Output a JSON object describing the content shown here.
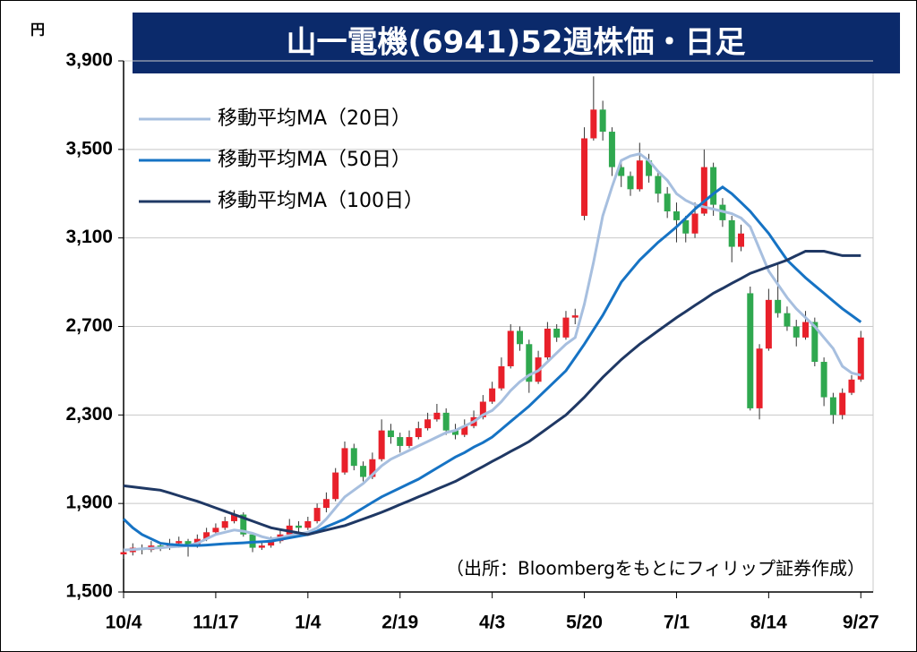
{
  "chart_data": {
    "type": "candlestick",
    "title": "山一電機(6941)52週株価・日足",
    "unit": "円",
    "annotation": "（出所：Bloombergをもとにフィリップ証券作成）",
    "up_color": "#e8202a",
    "down_color": "#2fa84f",
    "legend": "upper left",
    "grid": true,
    "xlim": [
      0,
      244
    ],
    "ylim": [
      1500,
      3900
    ],
    "xticks": [
      {
        "value": 0,
        "label": "10/4"
      },
      {
        "value": 30,
        "label": "11/17"
      },
      {
        "value": 60,
        "label": "1/4"
      },
      {
        "value": 90,
        "label": "2/19"
      },
      {
        "value": 120,
        "label": "4/3"
      },
      {
        "value": 150,
        "label": "5/20"
      },
      {
        "value": 180,
        "label": "7/1"
      },
      {
        "value": 210,
        "label": "8/14"
      },
      {
        "value": 240,
        "label": "9/27"
      }
    ],
    "yticks": [
      {
        "value": 1500,
        "label": "1,500"
      },
      {
        "value": 1900,
        "label": "1,900"
      },
      {
        "value": 2300,
        "label": "2,300"
      },
      {
        "value": 2700,
        "label": "2,700"
      },
      {
        "value": 3100,
        "label": "3,100"
      },
      {
        "value": 3500,
        "label": "3,500"
      },
      {
        "value": 3900,
        "label": "3,900"
      }
    ],
    "x": [
      0,
      3,
      6,
      9,
      12,
      15,
      18,
      21,
      24,
      27,
      30,
      33,
      36,
      39,
      42,
      45,
      48,
      51,
      54,
      57,
      60,
      63,
      66,
      69,
      72,
      75,
      78,
      81,
      84,
      87,
      90,
      93,
      96,
      99,
      102,
      105,
      108,
      111,
      114,
      117,
      120,
      123,
      126,
      129,
      132,
      135,
      138,
      141,
      144,
      147,
      150,
      153,
      156,
      159,
      162,
      165,
      168,
      171,
      174,
      177,
      180,
      183,
      186,
      189,
      192,
      195,
      198,
      201,
      204,
      207,
      210,
      213,
      216,
      219,
      222,
      225,
      228,
      231,
      234,
      237,
      240
    ],
    "ohlc": [
      [
        1670,
        1700,
        1650,
        1680
      ],
      [
        1680,
        1720,
        1665,
        1700
      ],
      [
        1700,
        1715,
        1670,
        1690
      ],
      [
        1690,
        1730,
        1680,
        1710
      ],
      [
        1710,
        1725,
        1685,
        1700
      ],
      [
        1700,
        1740,
        1690,
        1720
      ],
      [
        1720,
        1750,
        1700,
        1730
      ],
      [
        1730,
        1740,
        1660,
        1710
      ],
      [
        1710,
        1760,
        1700,
        1740
      ],
      [
        1740,
        1790,
        1730,
        1770
      ],
      [
        1770,
        1810,
        1760,
        1790
      ],
      [
        1790,
        1840,
        1780,
        1820
      ],
      [
        1820,
        1870,
        1810,
        1850
      ],
      [
        1850,
        1860,
        1750,
        1760
      ],
      [
        1760,
        1770,
        1680,
        1700
      ],
      [
        1700,
        1730,
        1690,
        1710
      ],
      [
        1710,
        1750,
        1700,
        1730
      ],
      [
        1730,
        1780,
        1720,
        1760
      ],
      [
        1760,
        1830,
        1750,
        1800
      ],
      [
        1800,
        1820,
        1770,
        1790
      ],
      [
        1790,
        1840,
        1780,
        1820
      ],
      [
        1820,
        1900,
        1810,
        1880
      ],
      [
        1880,
        1950,
        1860,
        1920
      ],
      [
        1920,
        2060,
        1910,
        2040
      ],
      [
        2040,
        2180,
        2030,
        2150
      ],
      [
        2150,
        2170,
        2050,
        2070
      ],
      [
        2070,
        2090,
        2000,
        2020
      ],
      [
        2020,
        2130,
        2010,
        2100
      ],
      [
        2100,
        2280,
        2090,
        2230
      ],
      [
        2230,
        2260,
        2170,
        2200
      ],
      [
        2200,
        2220,
        2130,
        2160
      ],
      [
        2160,
        2230,
        2150,
        2200
      ],
      [
        2200,
        2270,
        2190,
        2240
      ],
      [
        2240,
        2310,
        2230,
        2280
      ],
      [
        2280,
        2350,
        2270,
        2310
      ],
      [
        2310,
        2330,
        2210,
        2230
      ],
      [
        2230,
        2260,
        2190,
        2210
      ],
      [
        2210,
        2280,
        2200,
        2250
      ],
      [
        2250,
        2320,
        2240,
        2290
      ],
      [
        2290,
        2390,
        2280,
        2360
      ],
      [
        2360,
        2450,
        2350,
        2420
      ],
      [
        2420,
        2560,
        2410,
        2520
      ],
      [
        2520,
        2710,
        2510,
        2680
      ],
      [
        2680,
        2700,
        2590,
        2620
      ],
      [
        2620,
        2640,
        2400,
        2450
      ],
      [
        2450,
        2590,
        2440,
        2560
      ],
      [
        2560,
        2720,
        2550,
        2690
      ],
      [
        2690,
        2710,
        2630,
        2650
      ],
      [
        2650,
        2770,
        2640,
        2740
      ],
      [
        2740,
        2780,
        2710,
        2750
      ],
      [
        3200,
        3600,
        3180,
        3550
      ],
      [
        3550,
        3830,
        3540,
        3680
      ],
      [
        3680,
        3720,
        3540,
        3580
      ],
      [
        3580,
        3600,
        3380,
        3420
      ],
      [
        3420,
        3450,
        3330,
        3380
      ],
      [
        3380,
        3400,
        3290,
        3320
      ],
      [
        3320,
        3530,
        3310,
        3450
      ],
      [
        3450,
        3480,
        3350,
        3380
      ],
      [
        3380,
        3400,
        3260,
        3300
      ],
      [
        3300,
        3330,
        3190,
        3220
      ],
      [
        3220,
        3260,
        3080,
        3180
      ],
      [
        3180,
        3200,
        3080,
        3120
      ],
      [
        3120,
        3260,
        3100,
        3210
      ],
      [
        3210,
        3500,
        3200,
        3420
      ],
      [
        3420,
        3440,
        3200,
        3250
      ],
      [
        3250,
        3280,
        3150,
        3180
      ],
      [
        3180,
        3200,
        2990,
        3060
      ],
      [
        3060,
        3160,
        3040,
        3120
      ],
      [
        2850,
        2880,
        2320,
        2330
      ],
      [
        2330,
        2620,
        2280,
        2600
      ],
      [
        2600,
        2870,
        2590,
        2820
      ],
      [
        2820,
        2980,
        2740,
        2760
      ],
      [
        2760,
        2790,
        2680,
        2700
      ],
      [
        2700,
        2730,
        2610,
        2650
      ],
      [
        2650,
        2770,
        2640,
        2720
      ],
      [
        2720,
        2740,
        2520,
        2540
      ],
      [
        2540,
        2560,
        2340,
        2380
      ],
      [
        2380,
        2400,
        2260,
        2300
      ],
      [
        2300,
        2420,
        2280,
        2400
      ],
      [
        2400,
        2480,
        2390,
        2460
      ],
      [
        2460,
        2680,
        2450,
        2650
      ]
    ],
    "series": [
      {
        "name": "移動平均MA（20日）",
        "color": "#a7bfdf",
        "values": [
          1690,
          1692,
          1695,
          1698,
          1700,
          1703,
          1706,
          1710,
          1720,
          1740,
          1760,
          1770,
          1780,
          1775,
          1765,
          1750,
          1740,
          1745,
          1755,
          1762,
          1770,
          1790,
          1830,
          1880,
          1930,
          1960,
          1990,
          2030,
          2070,
          2100,
          2120,
          2140,
          2160,
          2180,
          2200,
          2220,
          2230,
          2250,
          2270,
          2300,
          2320,
          2360,
          2410,
          2450,
          2480,
          2500,
          2540,
          2580,
          2620,
          2650,
          2800,
          2990,
          3200,
          3330,
          3450,
          3470,
          3480,
          3450,
          3400,
          3360,
          3300,
          3270,
          3250,
          3240,
          3230,
          3220,
          3210,
          3190,
          3150,
          3050,
          2950,
          2890,
          2830,
          2780,
          2740,
          2700,
          2650,
          2600,
          2520,
          2490,
          2480
        ]
      },
      {
        "name": "移動平均MA（50日）",
        "color": "#1673c4",
        "values": [
          1830,
          1790,
          1760,
          1740,
          1720,
          1715,
          1712,
          1710,
          1710,
          1712,
          1715,
          1718,
          1720,
          1722,
          1725,
          1727,
          1730,
          1737,
          1745,
          1752,
          1760,
          1775,
          1795,
          1812,
          1830,
          1855,
          1880,
          1905,
          1930,
          1950,
          1970,
          1990,
          2010,
          2035,
          2060,
          2085,
          2110,
          2130,
          2155,
          2175,
          2200,
          2235,
          2270,
          2305,
          2340,
          2380,
          2420,
          2460,
          2500,
          2560,
          2620,
          2685,
          2750,
          2825,
          2900,
          2950,
          3000,
          3040,
          3080,
          3115,
          3150,
          3190,
          3230,
          3265,
          3300,
          3330,
          3300,
          3260,
          3220,
          3170,
          3120,
          3060,
          3000,
          2960,
          2920,
          2885,
          2850,
          2815,
          2780,
          2750,
          2720
        ]
      },
      {
        "name": "移動平均MA（100日）",
        "color": "#1f3864",
        "values": [
          1980,
          1975,
          1970,
          1965,
          1960,
          1948,
          1935,
          1922,
          1910,
          1895,
          1880,
          1865,
          1850,
          1835,
          1820,
          1805,
          1790,
          1782,
          1775,
          1767,
          1760,
          1770,
          1780,
          1790,
          1800,
          1815,
          1830,
          1845,
          1860,
          1877,
          1895,
          1912,
          1930,
          1947,
          1965,
          1982,
          2000,
          2022,
          2045,
          2067,
          2090,
          2112,
          2135,
          2157,
          2180,
          2210,
          2240,
          2270,
          2300,
          2340,
          2380,
          2425,
          2470,
          2510,
          2550,
          2585,
          2620,
          2650,
          2680,
          2710,
          2740,
          2767,
          2795,
          2822,
          2850,
          2872,
          2895,
          2917,
          2940,
          2955,
          2970,
          2985,
          3000,
          3020,
          3040,
          3040,
          3040,
          3030,
          3020,
          3020,
          3020
        ]
      }
    ]
  }
}
